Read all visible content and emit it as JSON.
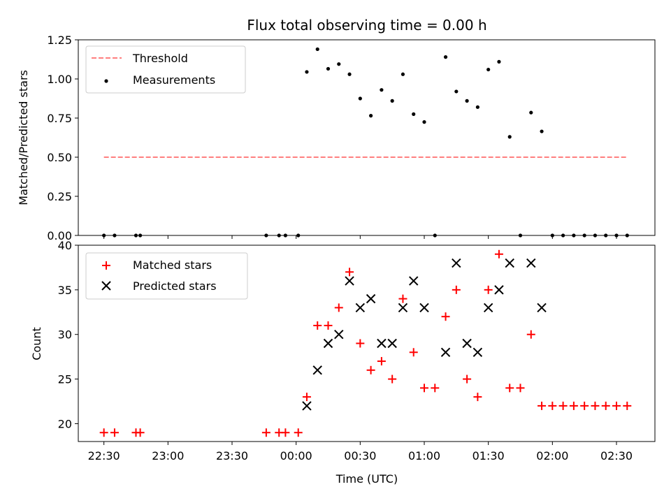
{
  "chart_data": [
    {
      "type": "scatter",
      "title": "Flux total observing time = 0.00 h",
      "ylabel": "Matched/Predicted stars",
      "ylim": [
        0,
        1.25
      ],
      "yticks": [
        "0.00",
        "0.25",
        "0.50",
        "0.75",
        "1.00",
        "1.25"
      ],
      "legend_position": "top-left",
      "threshold": {
        "name": "Threshold",
        "y": 0.5,
        "x_start": 0,
        "x_end": 245,
        "color": "#ff7f7f"
      },
      "series": [
        {
          "name": "Measurements",
          "color": "#000000",
          "points": [
            [
              0,
              0
            ],
            [
              5,
              0
            ],
            [
              15,
              0
            ],
            [
              17,
              0
            ],
            [
              76,
              0
            ],
            [
              82,
              0
            ],
            [
              85,
              0
            ],
            [
              91,
              0
            ],
            [
              95,
              1.045
            ],
            [
              100,
              1.19
            ],
            [
              105,
              1.065
            ],
            [
              110,
              1.095
            ],
            [
              115,
              1.03
            ],
            [
              120,
              0.875
            ],
            [
              125,
              0.765
            ],
            [
              130,
              0.93
            ],
            [
              135,
              0.86
            ],
            [
              140,
              1.03
            ],
            [
              145,
              0.775
            ],
            [
              150,
              0.725
            ],
            [
              155,
              0
            ],
            [
              160,
              1.14
            ],
            [
              165,
              0.92
            ],
            [
              170,
              0.86
            ],
            [
              175,
              0.82
            ],
            [
              180,
              1.06
            ],
            [
              185,
              1.11
            ],
            [
              190,
              0.63
            ],
            [
              195,
              0
            ],
            [
              200,
              0.785
            ],
            [
              205,
              0.665
            ],
            [
              210,
              0
            ],
            [
              215,
              0
            ],
            [
              220,
              0
            ],
            [
              225,
              0
            ],
            [
              230,
              0
            ],
            [
              235,
              0
            ],
            [
              240,
              0
            ],
            [
              245,
              0
            ]
          ]
        }
      ]
    },
    {
      "type": "scatter",
      "xlabel": "Time (UTC)",
      "ylabel": "Count",
      "ylim": [
        18,
        40
      ],
      "yticks": [
        "20",
        "25",
        "30",
        "35",
        "40"
      ],
      "xlim": [
        -12,
        258
      ],
      "x_unit": "minutes after 22:30 UTC",
      "xticks": [
        {
          "v": 0,
          "label": "22:30"
        },
        {
          "v": 30,
          "label": "23:00"
        },
        {
          "v": 60,
          "label": "23:30"
        },
        {
          "v": 90,
          "label": "00:00"
        },
        {
          "v": 120,
          "label": "00:30"
        },
        {
          "v": 150,
          "label": "01:00"
        },
        {
          "v": 180,
          "label": "01:30"
        },
        {
          "v": 210,
          "label": "02:00"
        },
        {
          "v": 240,
          "label": "02:30"
        }
      ],
      "legend_position": "top-left",
      "series": [
        {
          "name": "Matched stars",
          "color": "#ff0000",
          "marker": "plus",
          "points": [
            [
              0,
              19
            ],
            [
              5,
              19
            ],
            [
              15,
              19
            ],
            [
              17,
              19
            ],
            [
              76,
              19
            ],
            [
              82,
              19
            ],
            [
              85,
              19
            ],
            [
              91,
              19
            ],
            [
              95,
              23
            ],
            [
              100,
              31
            ],
            [
              105,
              31
            ],
            [
              110,
              33
            ],
            [
              115,
              37
            ],
            [
              120,
              29
            ],
            [
              125,
              26
            ],
            [
              130,
              27
            ],
            [
              135,
              25
            ],
            [
              140,
              34
            ],
            [
              145,
              28
            ],
            [
              150,
              24
            ],
            [
              155,
              24
            ],
            [
              160,
              32
            ],
            [
              165,
              35
            ],
            [
              170,
              25
            ],
            [
              175,
              23
            ],
            [
              180,
              35
            ],
            [
              185,
              39
            ],
            [
              190,
              24
            ],
            [
              195,
              24
            ],
            [
              200,
              30
            ],
            [
              205,
              22
            ],
            [
              210,
              22
            ],
            [
              215,
              22
            ],
            [
              220,
              22
            ],
            [
              225,
              22
            ],
            [
              230,
              22
            ],
            [
              235,
              22
            ],
            [
              240,
              22
            ],
            [
              245,
              22
            ]
          ]
        },
        {
          "name": "Predicted stars",
          "color": "#000000",
          "marker": "x",
          "points": [
            [
              95,
              22
            ],
            [
              100,
              26
            ],
            [
              105,
              29
            ],
            [
              110,
              30
            ],
            [
              115,
              36
            ],
            [
              120,
              33
            ],
            [
              125,
              34
            ],
            [
              130,
              29
            ],
            [
              135,
              29
            ],
            [
              140,
              33
            ],
            [
              145,
              36
            ],
            [
              150,
              33
            ],
            [
              160,
              28
            ],
            [
              165,
              38
            ],
            [
              170,
              29
            ],
            [
              175,
              28
            ],
            [
              180,
              33
            ],
            [
              185,
              35
            ],
            [
              190,
              38
            ],
            [
              200,
              38
            ],
            [
              205,
              33
            ]
          ]
        }
      ]
    }
  ]
}
